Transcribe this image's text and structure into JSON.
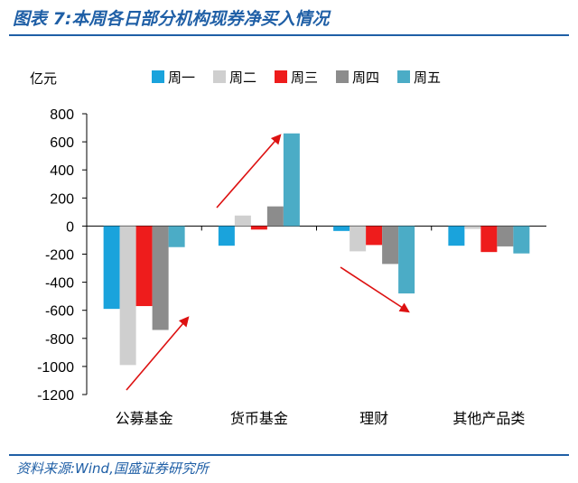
{
  "figure_title": "图表 7:本周各日部分机构现券净买入情况",
  "source": "资料来源:Wind,国盛证券研究所",
  "chart_data": {
    "type": "bar",
    "ylabel": "亿元",
    "ylim": [
      -1200,
      800
    ],
    "yticks": [
      800,
      600,
      400,
      200,
      0,
      -200,
      -400,
      -600,
      -800,
      -1000,
      -1200
    ],
    "categories": [
      "公募基金",
      "货币基金",
      "理财",
      "其他产品类"
    ],
    "legend_position": "top",
    "series": [
      {
        "name": "周一",
        "color": "#1aa3dc",
        "values": [
          -590,
          -140,
          -35,
          -140
        ]
      },
      {
        "name": "周二",
        "color": "#cfcfcf",
        "values": [
          -990,
          75,
          -180,
          -20
        ]
      },
      {
        "name": "周三",
        "color": "#ee1c1c",
        "values": [
          -570,
          -25,
          -135,
          -185
        ]
      },
      {
        "name": "周四",
        "color": "#8c8c8c",
        "values": [
          -740,
          140,
          -270,
          -145
        ]
      },
      {
        "name": "周五",
        "color": "#4bacc6",
        "values": [
          -150,
          660,
          -480,
          -195
        ]
      }
    ],
    "annotation_color": "#dd1111"
  }
}
